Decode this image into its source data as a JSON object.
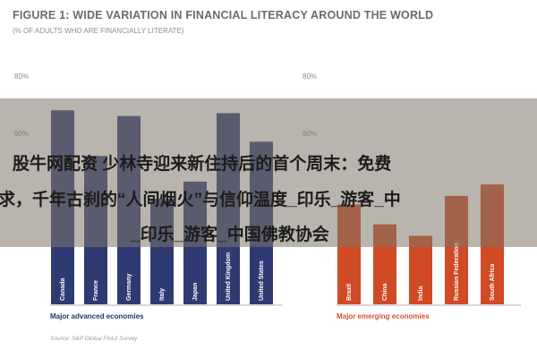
{
  "title": "FIGURE 1: WIDE VARIATION IN FINANCIAL LITERACY AROUND THE WORLD",
  "subtitle": "(% OF ADULTS WHO ARE FINANCIALLY LITERATE)",
  "colors": {
    "advanced": "#2e3b73",
    "emerging": "#cf4a25",
    "advanced_label": "#23376f",
    "emerging_label": "#d8502e"
  },
  "chart_data": [
    {
      "type": "bar",
      "title": "FIGURE 1: WIDE VARIATION IN FINANCIAL LITERACY AROUND THE WORLD",
      "subtitle": "(% OF ADULTS WHO ARE FINANCIALLY LITERATE)",
      "group": "Major advanced economies",
      "categories": [
        "Canada",
        "France",
        "Germany",
        "Italy",
        "Japan",
        "United Kingdom",
        "United States"
      ],
      "values": [
        68,
        52,
        66,
        37,
        43,
        67,
        57
      ],
      "ylim": [
        0,
        80
      ],
      "yticks": [
        "80%",
        "60%"
      ],
      "grid": false
    },
    {
      "type": "bar",
      "group": "Major emerging economies",
      "categories": [
        "Brazil",
        "China",
        "India",
        "Russian Federation",
        "South Africa"
      ],
      "values": [
        35,
        28,
        24,
        38,
        42
      ],
      "ylim": [
        0,
        80
      ],
      "yticks": [
        "80%",
        "60%"
      ],
      "grid": false
    }
  ],
  "group_labels": {
    "left": "Major advanced economies",
    "right": "Major emerging economies"
  },
  "source": "Source: S&P Global FinLit Survey",
  "overlay": {
    "line1": "股牛网配资 少林寺迎来新住持后的首个周末：免费",
    "line2": "求，千年古刹的“人间烟火”与信仰温度_印乐_游客_中",
    "line3": "_印乐_游客_中国佛教协会"
  }
}
